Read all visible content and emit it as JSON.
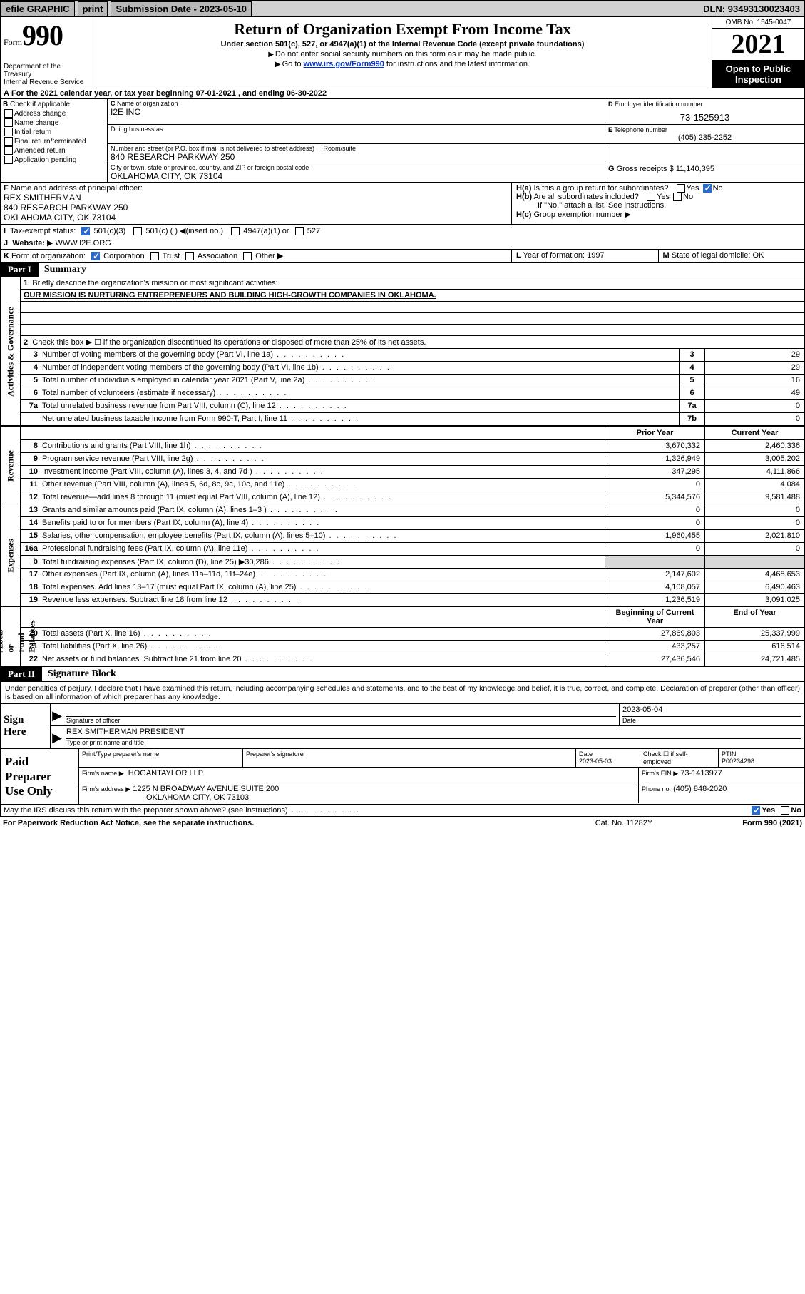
{
  "topbar": {
    "efile_label": "efile GRAPHIC",
    "print_label": "print",
    "subdate_label": "Submission Date - ",
    "subdate_value": "2023-05-10",
    "dln_label": "DLN: ",
    "dln_value": "93493130023403"
  },
  "header": {
    "form_word": "Form",
    "form_num": "990",
    "dept": "Department of the Treasury\nInternal Revenue Service",
    "title": "Return of Organization Exempt From Income Tax",
    "sub1": "Under section 501(c), 527, or 4947(a)(1) of the Internal Revenue Code (except private foundations)",
    "sub2": "Do not enter social security numbers on this form as it may be made public.",
    "sub3_pre": "Go to ",
    "sub3_link": "www.irs.gov/Form990",
    "sub3_post": " for instructions and the latest information.",
    "omb": "OMB No. 1545-0047",
    "year": "2021",
    "inspect": "Open to Public\nInspection"
  },
  "rowA": {
    "text_pre": "For the 2021 calendar year, or tax year beginning ",
    "begin": "07-01-2021",
    "mid": " , and ending ",
    "end": "06-30-2022"
  },
  "sectionB": {
    "title": "Check if applicable:",
    "items": [
      "Address change",
      "Name change",
      "Initial return",
      "Final return/terminated",
      "Amended return",
      "Application pending"
    ]
  },
  "sectionC": {
    "name_label": "Name of organization",
    "name": "I2E INC",
    "dba_label": "Doing business as",
    "dba": "",
    "addr_label": "Number and street (or P.O. box if mail is not delivered to street address)",
    "room_label": "Room/suite",
    "addr": "840 RESEARCH PARKWAY 250",
    "city_label": "City or town, state or province, country, and ZIP or foreign postal code",
    "city": "OKLAHOMA CITY, OK  73104"
  },
  "sectionD": {
    "label": "Employer identification number",
    "value": "73-1525913"
  },
  "sectionE": {
    "label": "Telephone number",
    "value": "(405) 235-2252"
  },
  "sectionG": {
    "label": "Gross receipts $",
    "value": "11,140,395"
  },
  "sectionF": {
    "label": "Name and address of principal officer:",
    "name": "REX SMITHERMAN",
    "addr": "840 RESEARCH PARKWAY 250\nOKLAHOMA CITY, OK  73104"
  },
  "sectionH": {
    "a_label": "Is this a group return for subordinates?",
    "a_no": true,
    "b_label": "Are all subordinates included?",
    "b_note": "If \"No,\" attach a list. See instructions.",
    "c_label": "Group exemption number"
  },
  "rowI": {
    "label": "Tax-exempt status:",
    "opts": [
      "501(c)(3)",
      "501(c) (  ) ◀(insert no.)",
      "4947(a)(1) or",
      "527"
    ],
    "checked_idx": 0
  },
  "rowJ": {
    "label": "Website:",
    "value": "WWW.I2E.ORG"
  },
  "rowK": {
    "label": "Form of organization:",
    "opts": [
      "Corporation",
      "Trust",
      "Association",
      "Other"
    ],
    "checked_idx": 0,
    "L_label": "Year of formation:",
    "L_value": "1997",
    "M_label": "State of legal domicile:",
    "M_value": "OK"
  },
  "parts": {
    "p1_badge": "Part I",
    "p1_title": "Summary",
    "p2_badge": "Part II",
    "p2_title": "Signature Block"
  },
  "summary": {
    "q1_label": "Briefly describe the organization's mission or most significant activities:",
    "q1_text": "OUR MISSION IS NURTURING ENTREPRENEURS AND BUILDING HIGH-GROWTH COMPANIES IN OKLAHOMA.",
    "q2_label": "Check this box ▶ ☐  if the organization discontinued its operations or disposed of more than 25% of its net assets."
  },
  "sidelabels": {
    "gov": "Activities & Governance",
    "rev": "Revenue",
    "exp": "Expenses",
    "net": "Net Assets or\nFund Balances"
  },
  "gov_lines": [
    {
      "n": "3",
      "desc": "Number of voting members of the governing body (Part VI, line 1a)",
      "box": "3",
      "val": "29"
    },
    {
      "n": "4",
      "desc": "Number of independent voting members of the governing body (Part VI, line 1b)",
      "box": "4",
      "val": "29"
    },
    {
      "n": "5",
      "desc": "Total number of individuals employed in calendar year 2021 (Part V, line 2a)",
      "box": "5",
      "val": "16"
    },
    {
      "n": "6",
      "desc": "Total number of volunteers (estimate if necessary)",
      "box": "6",
      "val": "49"
    },
    {
      "n": "7a",
      "desc": "Total unrelated business revenue from Part VIII, column (C), line 12",
      "box": "7a",
      "val": "0"
    },
    {
      "n": "",
      "desc": "Net unrelated business taxable income from Form 990-T, Part I, line 11",
      "box": "7b",
      "val": "0"
    }
  ],
  "col_headers": {
    "prior": "Prior Year",
    "current": "Current Year",
    "boy": "Beginning of Current Year",
    "eoy": "End of Year"
  },
  "rev_lines": [
    {
      "n": "8",
      "desc": "Contributions and grants (Part VIII, line 1h)",
      "p": "3,670,332",
      "c": "2,460,336"
    },
    {
      "n": "9",
      "desc": "Program service revenue (Part VIII, line 2g)",
      "p": "1,326,949",
      "c": "3,005,202"
    },
    {
      "n": "10",
      "desc": "Investment income (Part VIII, column (A), lines 3, 4, and 7d )",
      "p": "347,295",
      "c": "4,111,866"
    },
    {
      "n": "11",
      "desc": "Other revenue (Part VIII, column (A), lines 5, 6d, 8c, 9c, 10c, and 11e)",
      "p": "0",
      "c": "4,084"
    },
    {
      "n": "12",
      "desc": "Total revenue—add lines 8 through 11 (must equal Part VIII, column (A), line 12)",
      "p": "5,344,576",
      "c": "9,581,488"
    }
  ],
  "exp_lines": [
    {
      "n": "13",
      "desc": "Grants and similar amounts paid (Part IX, column (A), lines 1–3 )",
      "p": "0",
      "c": "0"
    },
    {
      "n": "14",
      "desc": "Benefits paid to or for members (Part IX, column (A), line 4)",
      "p": "0",
      "c": "0"
    },
    {
      "n": "15",
      "desc": "Salaries, other compensation, employee benefits (Part IX, column (A), lines 5–10)",
      "p": "1,960,455",
      "c": "2,021,810"
    },
    {
      "n": "16a",
      "desc": "Professional fundraising fees (Part IX, column (A), line 11e)",
      "p": "0",
      "c": "0"
    },
    {
      "n": "b",
      "desc": "Total fundraising expenses (Part IX, column (D), line 25) ▶30,286",
      "p": "",
      "c": "",
      "shaded": true
    },
    {
      "n": "17",
      "desc": "Other expenses (Part IX, column (A), lines 11a–11d, 11f–24e)",
      "p": "2,147,602",
      "c": "4,468,653"
    },
    {
      "n": "18",
      "desc": "Total expenses. Add lines 13–17 (must equal Part IX, column (A), line 25)",
      "p": "4,108,057",
      "c": "6,490,463"
    },
    {
      "n": "19",
      "desc": "Revenue less expenses. Subtract line 18 from line 12",
      "p": "1,236,519",
      "c": "3,091,025"
    }
  ],
  "net_lines": [
    {
      "n": "20",
      "desc": "Total assets (Part X, line 16)",
      "p": "27,869,803",
      "c": "25,337,999"
    },
    {
      "n": "21",
      "desc": "Total liabilities (Part X, line 26)",
      "p": "433,257",
      "c": "616,514"
    },
    {
      "n": "22",
      "desc": "Net assets or fund balances. Subtract line 21 from line 20",
      "p": "27,436,546",
      "c": "24,721,485"
    }
  ],
  "sig": {
    "intro": "Under penalties of perjury, I declare that I have examined this return, including accompanying schedules and statements, and to the best of my knowledge and belief, it is true, correct, and complete. Declaration of preparer (other than officer) is based on all information of which preparer has any knowledge.",
    "sign_here": "Sign\nHere",
    "sig_officer_label": "Signature of officer",
    "date_label": "Date",
    "date_value": "2023-05-04",
    "officer_name": "REX SMITHERMAN  PRESIDENT",
    "type_label": "Type or print name and title"
  },
  "prep": {
    "title": "Paid\nPreparer\nUse Only",
    "col1": "Print/Type preparer's name",
    "col2": "Preparer's signature",
    "col3_label": "Date",
    "col3_val": "2023-05-03",
    "col4_label": "Check ☐ if self-employed",
    "col5_label": "PTIN",
    "col5_val": "P00234298",
    "firm_name_label": "Firm's name   ▶",
    "firm_name": "HOGANTAYLOR LLP",
    "firm_ein_label": "Firm's EIN ▶",
    "firm_ein": "73-1413977",
    "firm_addr_label": "Firm's address ▶",
    "firm_addr1": "1225 N BROADWAY AVENUE SUITE 200",
    "firm_addr2": "OKLAHOMA CITY, OK  73103",
    "phone_label": "Phone no.",
    "phone_val": "(405) 848-2020"
  },
  "footer": {
    "discuss": "May the IRS discuss this return with the preparer shown above? (see instructions)",
    "yes_checked": true,
    "paperwork": "For Paperwork Reduction Act Notice, see the separate instructions.",
    "cat": "Cat. No. 11282Y",
    "formno": "Form 990 (2021)"
  },
  "colors": {
    "topbar_bg": "#d1d1d1",
    "link": "#0033cc",
    "check_blue": "#2a6bcc",
    "shade": "#d9d9d9"
  }
}
